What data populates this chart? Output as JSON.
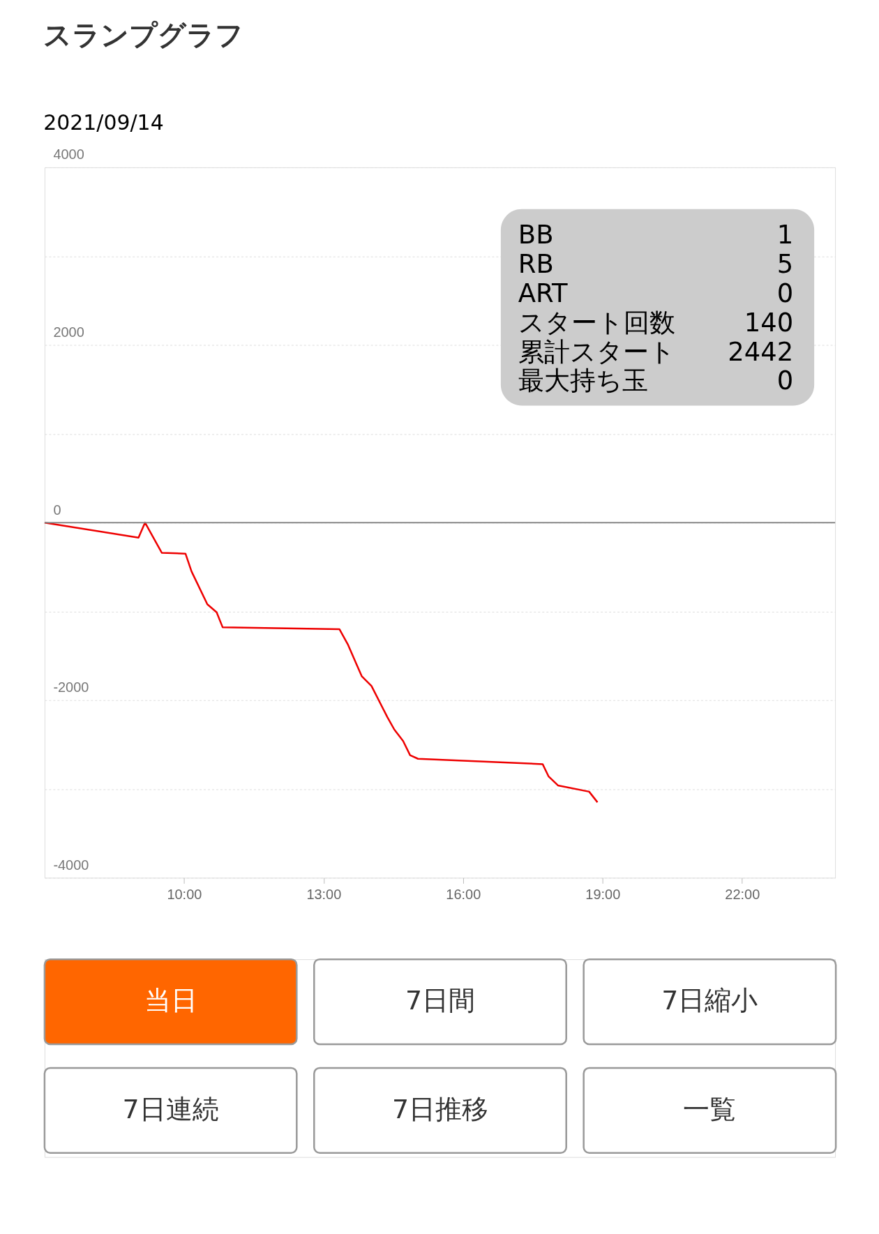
{
  "chart_data": {
    "type": "line",
    "title": "スランプグラフ",
    "subtitle": "2021/09/14",
    "x": [
      7.0,
      9.02,
      9.16,
      9.52,
      10.03,
      10.16,
      10.5,
      10.7,
      10.83,
      13.34,
      13.52,
      13.82,
      14.03,
      14.37,
      14.52,
      14.71,
      14.86,
      15.03,
      17.71,
      17.84,
      18.04,
      18.71,
      18.89
    ],
    "series": [
      {
        "color": "#ee0000",
        "values": [
          0,
          -170,
          0,
          -340,
          -350,
          -550,
          -920,
          -1010,
          -1180,
          -1200,
          -1370,
          -1730,
          -1840,
          -2190,
          -2330,
          -2460,
          -2620,
          -2660,
          -2720,
          -2860,
          -2960,
          -3030,
          -3150
        ]
      }
    ],
    "xlim": [
      7,
      24
    ],
    "xticks": [
      {
        "value": 10,
        "label": "10:00"
      },
      {
        "value": 13,
        "label": "13:00"
      },
      {
        "value": 16,
        "label": "16:00"
      },
      {
        "value": 19,
        "label": "19:00"
      },
      {
        "value": 22,
        "label": "22:00"
      }
    ],
    "ylim": [
      -4000,
      4000
    ],
    "yticks": [
      -4000,
      {
        "value": -3000,
        "label": null
      },
      -2000,
      {
        "value": -1000,
        "label": null
      },
      0,
      {
        "value": 1000,
        "label": null
      },
      2000,
      {
        "value": 3000,
        "label": null
      },
      4000
    ],
    "ref_lines": [
      {
        "axis": "y",
        "value": 0,
        "color": "#888888"
      }
    ],
    "grid": "y",
    "annotations": [
      "BB",
      "1",
      "RB",
      "5",
      "ART",
      "0",
      "スタート回数",
      "140",
      "累計スタート",
      "2442",
      "最大持ち玉",
      "0",
      "当日",
      "7日間",
      "7日縮小",
      "7日連続",
      "7日推移",
      "一覧"
    ]
  }
}
